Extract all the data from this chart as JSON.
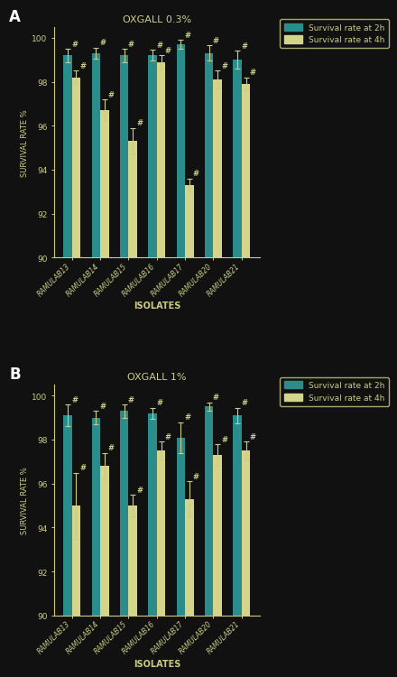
{
  "panel_A": {
    "title": "OXGALL 0.3%",
    "label": "A",
    "isolates": [
      "RAMULAB13",
      "RAMULAB14",
      "RAMULAB15",
      "RAMULAB16",
      "RAMULAB17",
      "RAMULAB20",
      "RAMULAB21"
    ],
    "survival_2h": [
      99.2,
      99.3,
      99.2,
      99.2,
      99.7,
      99.3,
      99.0
    ],
    "survival_4h": [
      98.2,
      96.7,
      95.3,
      98.9,
      93.3,
      98.1,
      97.9
    ],
    "err_2h": [
      0.3,
      0.25,
      0.3,
      0.25,
      0.2,
      0.35,
      0.4
    ],
    "err_4h": [
      0.3,
      0.5,
      0.6,
      0.3,
      0.3,
      0.4,
      0.3
    ],
    "hash_2h": [
      true,
      true,
      true,
      true,
      true,
      true,
      true
    ],
    "hash_4h": [
      true,
      true,
      true,
      true,
      true,
      true,
      true
    ]
  },
  "panel_B": {
    "title": "OXGALL 1%",
    "label": "B",
    "isolates": [
      "RAMULAB13",
      "RAMULAB14",
      "RAMULAB15",
      "RAMULAB16",
      "RAMULAB17",
      "RAMULAB20",
      "RAMULAB21"
    ],
    "survival_2h": [
      99.1,
      99.0,
      99.3,
      99.2,
      98.1,
      99.5,
      99.1
    ],
    "survival_4h": [
      95.0,
      96.8,
      95.0,
      97.5,
      95.3,
      97.3,
      97.5
    ],
    "err_2h": [
      0.5,
      0.3,
      0.3,
      0.25,
      0.7,
      0.2,
      0.35
    ],
    "err_4h": [
      1.5,
      0.6,
      0.5,
      0.4,
      0.8,
      0.5,
      0.4
    ]
  },
  "color_2h": "#2b8c8c",
  "color_4h": "#d4d48a",
  "bg_color": "#111111",
  "plot_bg": "#111111",
  "text_color": "#cccc88",
  "axis_color": "#cccc88",
  "white_color": "#ffffff",
  "legend_2h": "Survival rate at 2h",
  "legend_4h": "Survival rate at 4h",
  "ylabel": "SURVIVAL RATE %",
  "xlabel": "ISOLATES",
  "ylim": [
    90,
    100.5
  ],
  "yticks": [
    90,
    92,
    94,
    96,
    98,
    100
  ],
  "bar_width": 0.3
}
